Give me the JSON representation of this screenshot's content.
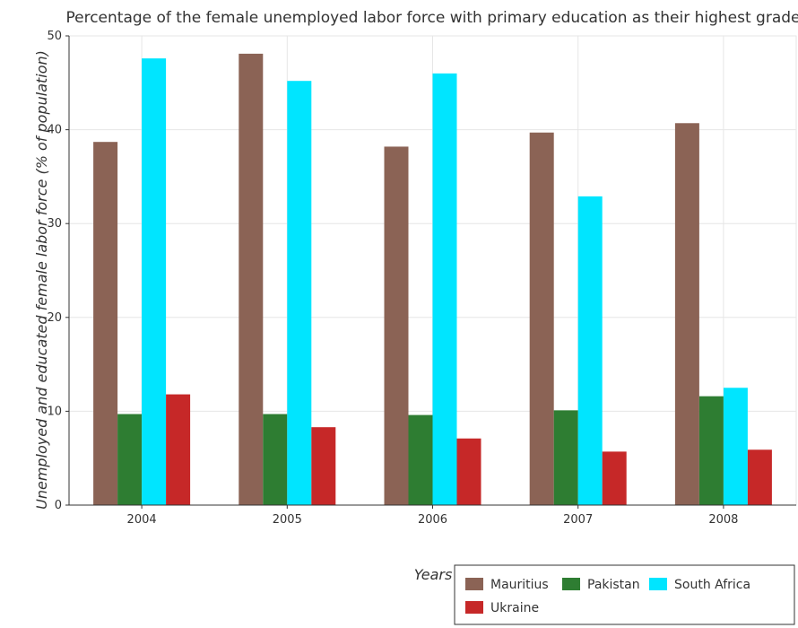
{
  "chart_data": {
    "type": "bar",
    "title": "Percentage of the female unemployed labor force with primary education as their highest grade",
    "xlabel": "Years",
    "ylabel": "Unemployed and educated female labor force (% of population)",
    "categories": [
      "2004",
      "2005",
      "2006",
      "2007",
      "2008"
    ],
    "ylim": [
      0,
      50
    ],
    "yticks": [
      0,
      10,
      20,
      30,
      40,
      50
    ],
    "grid": true,
    "legend_position": "bottom-right",
    "series": [
      {
        "name": "Mauritius",
        "color": "#8B6355",
        "values": [
          38.7,
          48.1,
          38.2,
          39.7,
          40.7
        ]
      },
      {
        "name": "Pakistan",
        "color": "#2E7D32",
        "values": [
          9.7,
          9.7,
          9.6,
          10.1,
          11.6
        ]
      },
      {
        "name": "South Africa",
        "color": "#00E5FF",
        "values": [
          47.6,
          45.2,
          46.0,
          32.9,
          12.5
        ]
      },
      {
        "name": "Ukraine",
        "color": "#C62828",
        "values": [
          11.8,
          8.3,
          7.1,
          5.7,
          5.9
        ]
      }
    ]
  }
}
